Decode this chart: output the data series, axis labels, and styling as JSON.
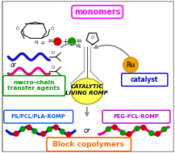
{
  "bg_color": "#ffffff",
  "border_color": "#999999",
  "title_monomers": "monomers",
  "title_monomers_color": "#ff00ff",
  "label_macro": "macro-chain\ntransfer agents",
  "label_macro_color": "#009900",
  "label_catalyst": "catalyst",
  "label_catalyst_color": "#0000cc",
  "label_catalytic": "CATALYTIC\nLIVING ROMP",
  "label_catalytic_color": "#000000",
  "label_ps": "PS/PCL/PLA-ROMP",
  "label_ps_color": "#0055ee",
  "label_peg": "PEG-PCL-ROMP",
  "label_peg_color": "#aa00cc",
  "label_block": "Block copolymers",
  "label_block_color": "#ff6600",
  "wave_blue": "#1010cc",
  "wave_pink": "#ee0088",
  "dot_red": "#cc0000",
  "dot_green": "#009900",
  "ru_color": "#f0a000",
  "ru_border": "#cc8800",
  "ellipse_fill": "#ffff55",
  "ellipse_stroke": "#aaaa00",
  "flask_color": "#aaaaaa",
  "arrow_color": "#888888",
  "struct_color": "#222222"
}
